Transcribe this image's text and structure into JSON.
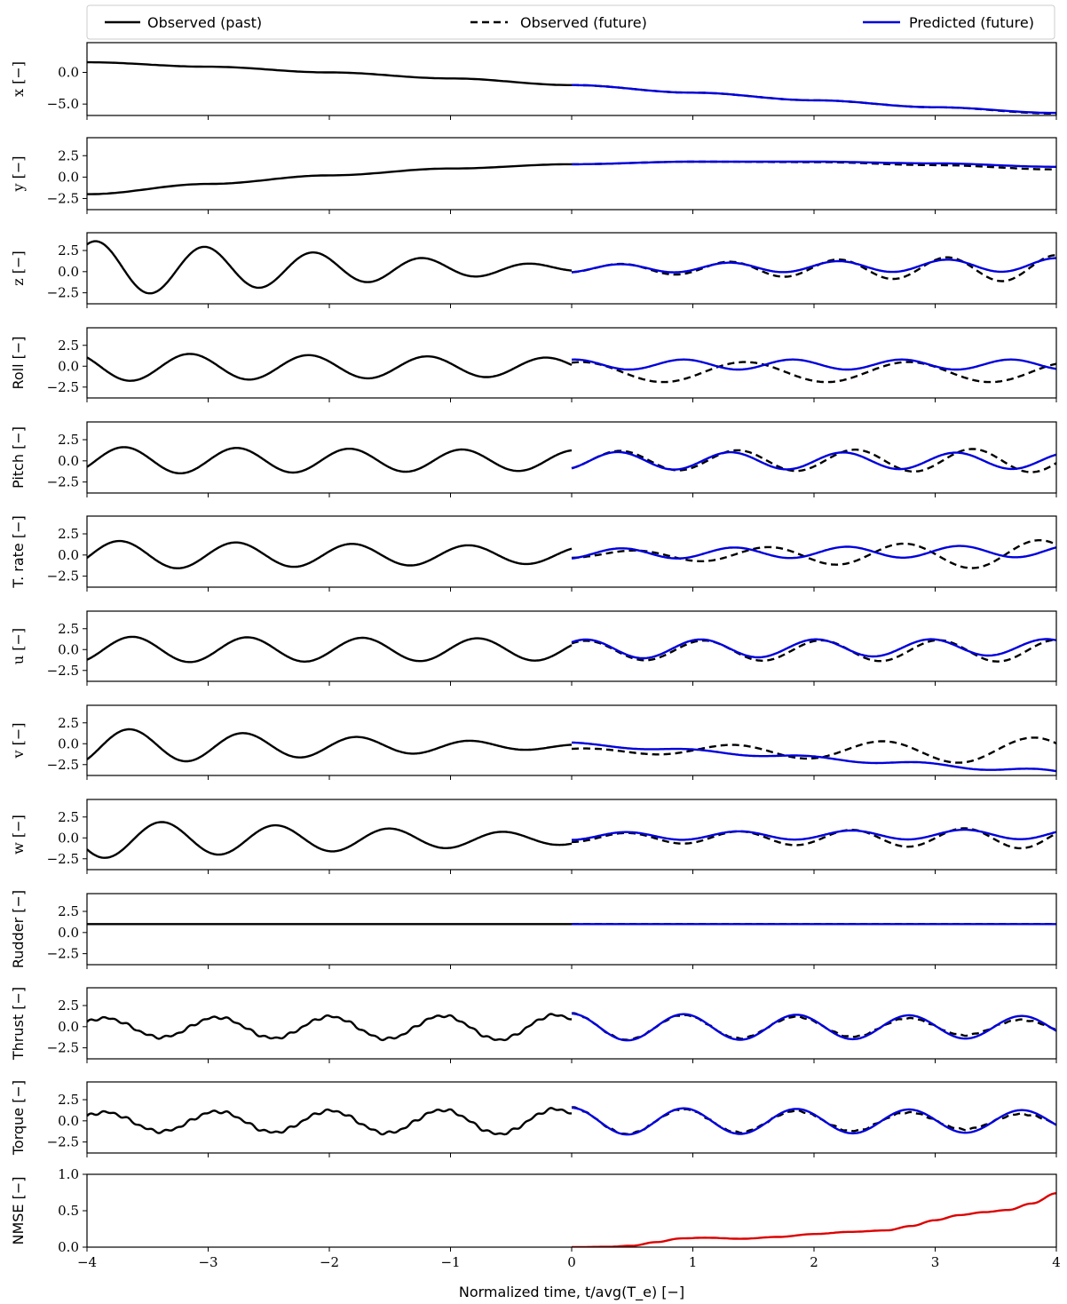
{
  "chart_data": {
    "type": "line",
    "layout": "13 vertically stacked panels sharing the x axis",
    "xlabel": "Normalized time, t/avg(T_e) [−]",
    "xlim": [
      -4,
      4
    ],
    "xticks": [
      -4,
      -3,
      -2,
      -1,
      0,
      1,
      2,
      3,
      4
    ],
    "xtick_labels": [
      "−4",
      "−3",
      "−2",
      "−1",
      "0",
      "1",
      "2",
      "3",
      "4"
    ],
    "legend": {
      "placement": "top, above first panel, spanning full width",
      "entries": [
        {
          "label": "Observed (past)",
          "color": "#000000",
          "style": "solid"
        },
        {
          "label": "Observed (future)",
          "color": "#000000",
          "style": "dashed"
        },
        {
          "label": "Predicted (future)",
          "color": "#0000dd",
          "style": "solid"
        }
      ]
    },
    "colors": {
      "observed": "#000000",
      "predicted": "#0000dd",
      "nmse": "#dd0000"
    },
    "panels": [
      {
        "id": "x",
        "ylabel": "x [−]",
        "ylim": [
          -6.8,
          4.7
        ],
        "yticks": [
          0.0,
          -5.0
        ],
        "ytick_labels": [
          "0.0",
          "−5.0"
        ],
        "past": {
          "type": "poly",
          "points": [
            [
              -4,
              1.6
            ],
            [
              -3,
              0.9
            ],
            [
              -2,
              0.0
            ],
            [
              -1,
              -0.95
            ],
            [
              0,
              -2.0
            ]
          ]
        },
        "future_observed": {
          "type": "poly",
          "points": [
            [
              0,
              -2.0
            ],
            [
              1,
              -3.2
            ],
            [
              2,
              -4.4
            ],
            [
              3,
              -5.5
            ],
            [
              4,
              -6.5
            ]
          ]
        },
        "predicted": {
          "type": "poly",
          "points": [
            [
              0,
              -2.0
            ],
            [
              1,
              -3.2
            ],
            [
              2,
              -4.4
            ],
            [
              3,
              -5.5
            ],
            [
              4,
              -6.4
            ]
          ]
        }
      },
      {
        "id": "y",
        "ylabel": "y [−]",
        "ylim": [
          -3.8,
          4.6
        ],
        "yticks": [
          2.5,
          0.0,
          -2.5
        ],
        "ytick_labels": [
          "2.5",
          "0.0",
          "−2.5"
        ],
        "past": {
          "type": "poly",
          "points": [
            [
              -4,
              -2.0
            ],
            [
              -3,
              -0.8
            ],
            [
              -2,
              0.2
            ],
            [
              -1,
              1.0
            ],
            [
              0,
              1.5
            ]
          ]
        },
        "future_observed": {
          "type": "poly",
          "points": [
            [
              0,
              1.5
            ],
            [
              1,
              1.8
            ],
            [
              2,
              1.75
            ],
            [
              3,
              1.4
            ],
            [
              4,
              0.9
            ]
          ]
        },
        "predicted": {
          "type": "poly",
          "points": [
            [
              0,
              1.5
            ],
            [
              1,
              1.8
            ],
            [
              2,
              1.8
            ],
            [
              3,
              1.6
            ],
            [
              4,
              1.2
            ]
          ]
        }
      },
      {
        "id": "z",
        "ylabel": "z [−]",
        "ylim": [
          -3.8,
          4.6
        ],
        "yticks": [
          2.5,
          0.0,
          -2.5
        ],
        "ytick_labels": [
          "2.5",
          "0.0",
          "−2.5"
        ],
        "past": {
          "type": "osc",
          "amp0": 3.3,
          "amp1": 0.35,
          "base": 0.35,
          "period": 0.9,
          "phase0": 1.05,
          "t0": -4,
          "t1": 0
        },
        "future_observed": {
          "type": "osc",
          "amp0": 0.45,
          "amp1": 1.6,
          "base": 0.35,
          "period": 0.9,
          "phase0": -1.2,
          "t0": 0,
          "t1": 4
        },
        "predicted": {
          "type": "osc",
          "amp0": 0.45,
          "amp1": 0.8,
          "base": 0.35,
          "trend": 0.45,
          "period": 0.9,
          "phase0": -1.2,
          "t0": 0,
          "t1": 4
        }
      },
      {
        "id": "roll",
        "ylabel": "Roll [−]",
        "ylim": [
          -3.8,
          4.6
        ],
        "yticks": [
          2.5,
          0.0,
          -2.5
        ],
        "ytick_labels": [
          "2.5",
          "0.0",
          "−2.5"
        ],
        "past": {
          "type": "osc",
          "amp0": 1.7,
          "amp1": 1.1,
          "base": -0.1,
          "period": 0.98,
          "phase0": 2.4,
          "t0": -4,
          "t1": 0
        },
        "future_observed": {
          "type": "osc",
          "amp0": 1.2,
          "amp1": 1.2,
          "base": -0.7,
          "period": 1.35,
          "phase0": 1.2,
          "t0": 0,
          "t1": 4
        },
        "predicted": {
          "type": "osc",
          "amp0": 0.6,
          "amp1": 0.6,
          "base": 0.2,
          "period": 0.9,
          "phase0": 1.4,
          "t0": 0,
          "t1": 4
        }
      },
      {
        "id": "pitch",
        "ylabel": "Pitch [−]",
        "ylim": [
          -3.8,
          4.6
        ],
        "yticks": [
          2.5,
          0.0,
          -2.5
        ],
        "ytick_labels": [
          "2.5",
          "0.0",
          "−2.5"
        ],
        "past": {
          "type": "osc",
          "amp0": 1.6,
          "amp1": 1.2,
          "base": 0.05,
          "period": 0.93,
          "phase0": -0.5,
          "t0": -4,
          "t1": 0
        },
        "future_observed": {
          "type": "osc",
          "amp0": 1.1,
          "amp1": 1.4,
          "base": 0.05,
          "period": 0.97,
          "phase0": -1.0,
          "t0": 0,
          "t1": 4
        },
        "predicted": {
          "type": "osc",
          "amp0": 1.05,
          "amp1": 0.95,
          "base": 0.0,
          "period": 0.93,
          "phase0": -1.0,
          "t0": 0,
          "t1": 4
        }
      },
      {
        "id": "trate",
        "ylabel": "T. rate [−]",
        "ylim": [
          -3.8,
          4.6
        ],
        "yticks": [
          2.5,
          0.0,
          -2.5
        ],
        "ytick_labels": [
          "2.5",
          "0.0",
          "−2.5"
        ],
        "past": {
          "type": "osc",
          "amp0": 1.7,
          "amp1": 1.0,
          "base": 0.0,
          "period": 0.96,
          "phase0": -0.2,
          "t0": -4,
          "t1": 0
        },
        "future_observed": {
          "type": "osc",
          "amp0": 0.35,
          "amp1": 1.8,
          "base": 0.0,
          "period": 1.12,
          "phase0": -1.2,
          "t0": 0,
          "t1": 4
        },
        "predicted": {
          "type": "osc",
          "amp0": 0.6,
          "amp1": 0.7,
          "base": 0.15,
          "trend": 0.3,
          "period": 0.93,
          "phase0": -1.2,
          "t0": 0,
          "t1": 4
        }
      },
      {
        "id": "u",
        "ylabel": "u [−]",
        "ylim": [
          -3.8,
          4.6
        ],
        "yticks": [
          2.5,
          0.0,
          -2.5
        ],
        "ytick_labels": [
          "2.5",
          "0.0",
          "−2.5"
        ],
        "past": {
          "type": "osc",
          "amp0": 1.55,
          "amp1": 1.3,
          "base": 0.0,
          "period": 0.95,
          "phase0": -0.9,
          "t0": -4,
          "t1": 0
        },
        "future_observed": {
          "type": "osc",
          "amp0": 1.15,
          "amp1": 1.3,
          "base": -0.1,
          "trend": -0.05,
          "period": 0.97,
          "phase0": 0.8,
          "t0": 0,
          "t1": 4
        },
        "predicted": {
          "type": "osc",
          "amp0": 1.15,
          "amp1": 0.95,
          "base": 0.05,
          "trend": 0.25,
          "period": 0.95,
          "phase0": 0.8,
          "t0": 0,
          "t1": 4
        }
      },
      {
        "id": "v",
        "ylabel": "v [−]",
        "ylim": [
          -3.8,
          4.6
        ],
        "yticks": [
          2.5,
          0.0,
          -2.5
        ],
        "ytick_labels": [
          "2.5",
          "0.0",
          "−2.5"
        ],
        "past": {
          "type": "osc",
          "amp0": 2.2,
          "amp1": 0.25,
          "base": -0.3,
          "period": 0.94,
          "phase0": -0.8,
          "t0": -4,
          "t1": 0
        },
        "future_observed": {
          "type": "osc",
          "amp0": 0.2,
          "amp1": 1.7,
          "base": -0.8,
          "trend": -0.1,
          "period": 1.25,
          "phase0": 1.3,
          "t0": 0,
          "t1": 4
        },
        "predicted": {
          "type": "osc",
          "amp0": 0.15,
          "amp1": 0.25,
          "base": 0.0,
          "trend": -3.4,
          "period": 0.95,
          "phase0": 1.3,
          "t0": 0,
          "t1": 4
        }
      },
      {
        "id": "w",
        "ylabel": "w [−]",
        "ylim": [
          -3.8,
          4.6
        ],
        "yticks": [
          2.5,
          0.0,
          -2.5
        ],
        "ytick_labels": [
          "2.5",
          "0.0",
          "−2.5"
        ],
        "past": {
          "type": "osc",
          "amp0": 2.3,
          "amp1": 0.65,
          "base": -0.15,
          "period": 0.94,
          "phase0": 3.7,
          "t0": -4,
          "t1": 0
        },
        "future_observed": {
          "type": "osc",
          "amp0": 0.5,
          "amp1": 1.3,
          "base": 0.0,
          "period": 0.93,
          "phase0": -1.45,
          "t0": 0,
          "t1": 4
        },
        "predicted": {
          "type": "osc",
          "amp0": 0.45,
          "amp1": 0.6,
          "base": 0.2,
          "trend": 0.25,
          "period": 0.93,
          "phase0": -1.45,
          "t0": 0,
          "t1": 4
        }
      },
      {
        "id": "rudder",
        "ylabel": "Rudder [−]",
        "ylim": [
          -3.8,
          4.6
        ],
        "yticks": [
          2.5,
          0.0,
          -2.5
        ],
        "ytick_labels": [
          "2.5",
          "0.0",
          "−2.5"
        ],
        "past": {
          "type": "poly",
          "points": [
            [
              -4,
              1.0
            ],
            [
              0,
              1.0
            ]
          ]
        },
        "future_observed": {
          "type": "poly",
          "points": [
            [
              0,
              1.0
            ],
            [
              4,
              1.0
            ]
          ]
        },
        "predicted": {
          "type": "poly",
          "points": [
            [
              0,
              1.0
            ],
            [
              4,
              1.0
            ]
          ]
        }
      },
      {
        "id": "thrust",
        "ylabel": "Thrust [−]",
        "ylim": [
          -3.8,
          4.6
        ],
        "yticks": [
          2.5,
          0.0,
          -2.5
        ],
        "ytick_labels": [
          "2.5",
          "0.0",
          "−2.5"
        ],
        "past": {
          "type": "osc",
          "amp0": 1.1,
          "amp1": 1.5,
          "base": -0.1,
          "period": 0.93,
          "phase0": 0.6,
          "noise": 0.18,
          "t0": -4,
          "t1": 0
        },
        "future_observed": {
          "type": "osc",
          "amp0": 1.6,
          "amp1": 0.8,
          "base": -0.05,
          "period": 0.93,
          "phase0": 1.6,
          "noise": 0.08,
          "t0": 0,
          "t1": 4
        },
        "predicted": {
          "type": "osc",
          "amp0": 1.6,
          "amp1": 1.3,
          "base": -0.05,
          "period": 0.93,
          "phase0": 1.6,
          "t0": 0,
          "t1": 4
        }
      },
      {
        "id": "torque",
        "ylabel": "Torque [−]",
        "ylim": [
          -3.8,
          4.6
        ],
        "yticks": [
          2.5,
          0.0,
          -2.5
        ],
        "ytick_labels": [
          "2.5",
          "0.0",
          "−2.5"
        ],
        "past": {
          "type": "osc",
          "amp0": 1.1,
          "amp1": 1.5,
          "base": -0.1,
          "period": 0.93,
          "phase0": 0.6,
          "noise": 0.2,
          "t0": -4,
          "t1": 0
        },
        "future_observed": {
          "type": "osc",
          "amp0": 1.6,
          "amp1": 0.8,
          "base": -0.05,
          "period": 0.93,
          "phase0": 1.6,
          "noise": 0.1,
          "t0": 0,
          "t1": 4
        },
        "predicted": {
          "type": "osc",
          "amp0": 1.6,
          "amp1": 1.3,
          "base": -0.05,
          "period": 0.93,
          "phase0": 1.6,
          "t0": 0,
          "t1": 4
        }
      },
      {
        "id": "nmse",
        "ylabel": "NMSE [−]",
        "ylim": [
          0.0,
          1.0
        ],
        "yticks": [
          1.0,
          0.5,
          0.0
        ],
        "ytick_labels": [
          "1.0",
          "0.5",
          "0.0"
        ],
        "nmse": {
          "points": [
            [
              0.0,
              0.0
            ],
            [
              0.3,
              0.005
            ],
            [
              0.5,
              0.02
            ],
            [
              0.7,
              0.07
            ],
            [
              0.9,
              0.12
            ],
            [
              1.1,
              0.13
            ],
            [
              1.4,
              0.115
            ],
            [
              1.7,
              0.14
            ],
            [
              2.0,
              0.18
            ],
            [
              2.3,
              0.21
            ],
            [
              2.6,
              0.23
            ],
            [
              2.8,
              0.29
            ],
            [
              3.0,
              0.37
            ],
            [
              3.2,
              0.44
            ],
            [
              3.4,
              0.48
            ],
            [
              3.6,
              0.51
            ],
            [
              3.8,
              0.6
            ],
            [
              4.0,
              0.74
            ]
          ]
        }
      }
    ]
  }
}
